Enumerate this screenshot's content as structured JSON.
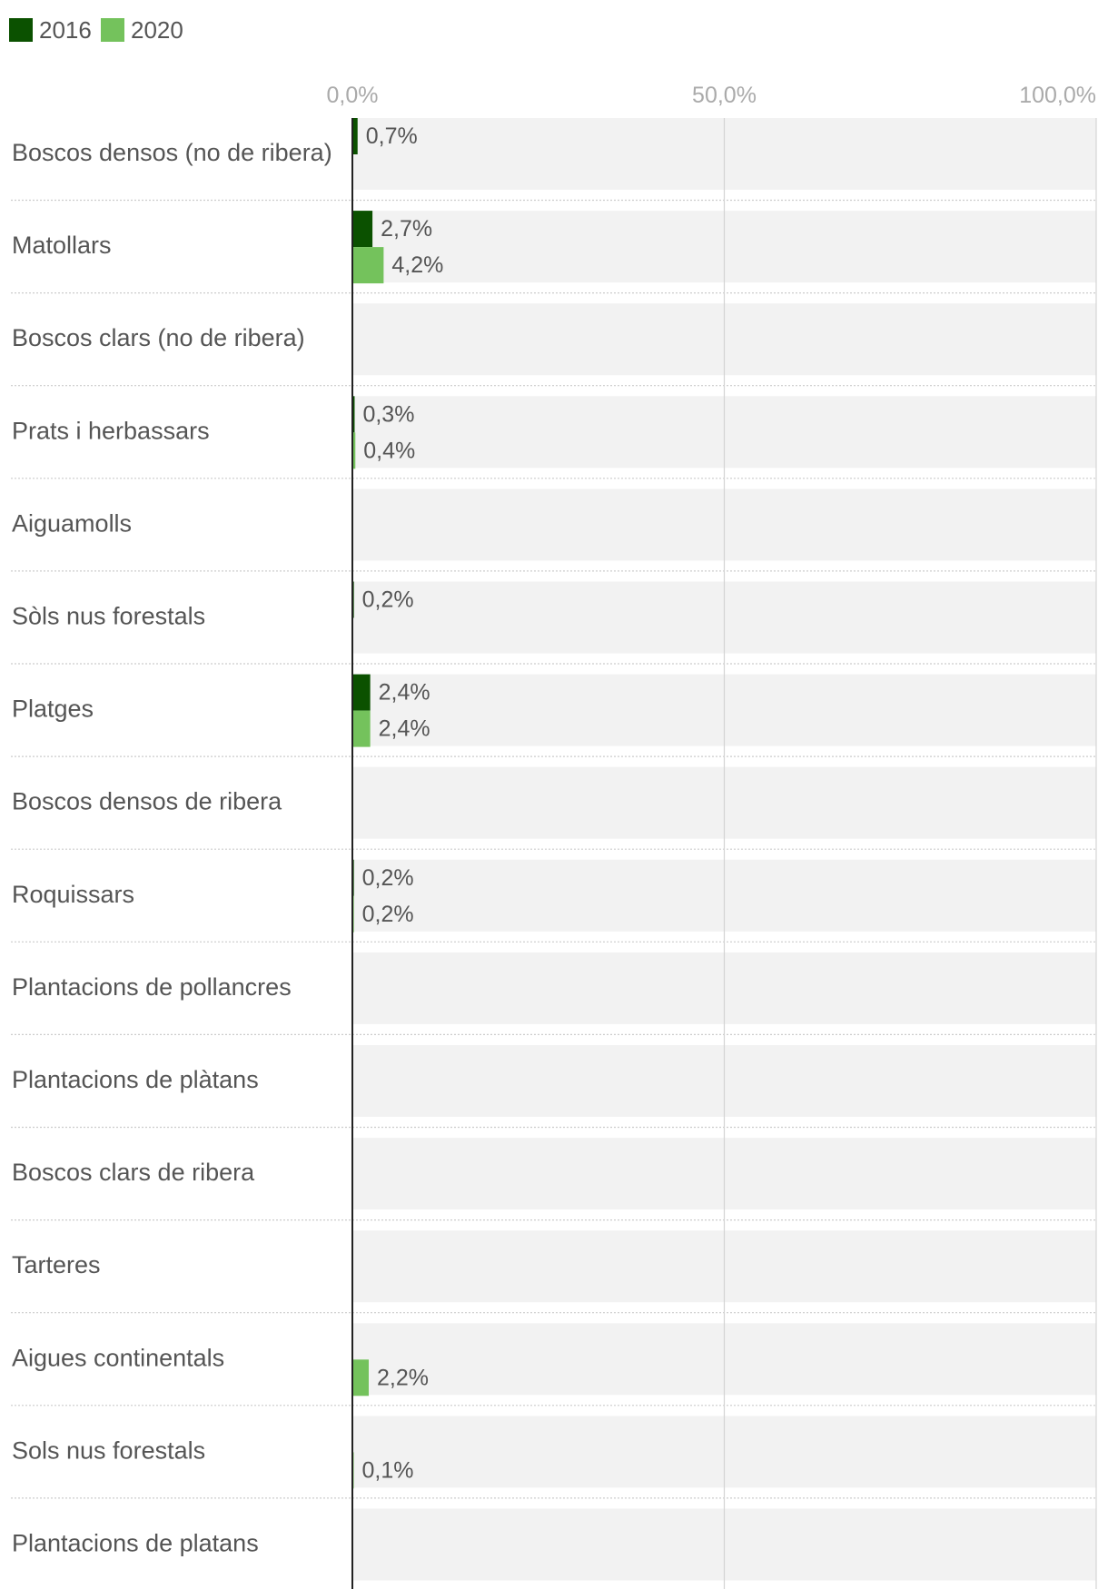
{
  "colors": {
    "series_2016": "#0b5100",
    "series_2020": "#74c25c",
    "row_background": "#f2f2f2",
    "gridline": "#d4d4d4",
    "axis_line": "#222222",
    "separator": "#cccccc"
  },
  "chart_data": {
    "type": "bar",
    "orientation": "horizontal",
    "title": "",
    "xlabel": "",
    "ylabel": "",
    "xlim": [
      0,
      100
    ],
    "ticks": [
      0,
      50,
      100
    ],
    "tick_labels": [
      "0,0%",
      "50,0%",
      "100,0%"
    ],
    "grid": true,
    "legend_position": "top-left",
    "categories": [
      "Boscos densos (no de ribera)",
      "Matollars",
      "Boscos clars (no de ribera)",
      "Prats i herbassars",
      "Aiguamolls",
      "Sòls nus forestals",
      "Platges",
      "Boscos densos de ribera",
      "Roquissars",
      "Plantacions de pollancres",
      "Plantacions de plàtans",
      "Boscos clars de ribera",
      "Tarteres",
      "Aigues continentals",
      "Sols nus forestals",
      "Plantacions de platans"
    ],
    "series": [
      {
        "name": "2016",
        "values": [
          0.7,
          2.7,
          null,
          0.3,
          null,
          0.2,
          2.4,
          null,
          0.2,
          null,
          null,
          null,
          null,
          null,
          null,
          null
        ],
        "labels": [
          "0,7%",
          "2,7%",
          "",
          "0,3%",
          "",
          "0,2%",
          "2,4%",
          "",
          "0,2%",
          "",
          "",
          "",
          "",
          "",
          "",
          ""
        ]
      },
      {
        "name": "2020",
        "values": [
          null,
          4.2,
          null,
          0.4,
          null,
          null,
          2.4,
          null,
          0.2,
          null,
          null,
          null,
          null,
          2.2,
          0.1,
          null
        ],
        "labels": [
          "",
          "4,2%",
          "",
          "0,4%",
          "",
          "",
          "2,4%",
          "",
          "0,2%",
          "",
          "",
          "",
          "",
          "2,2%",
          "0,1%",
          ""
        ]
      }
    ]
  }
}
